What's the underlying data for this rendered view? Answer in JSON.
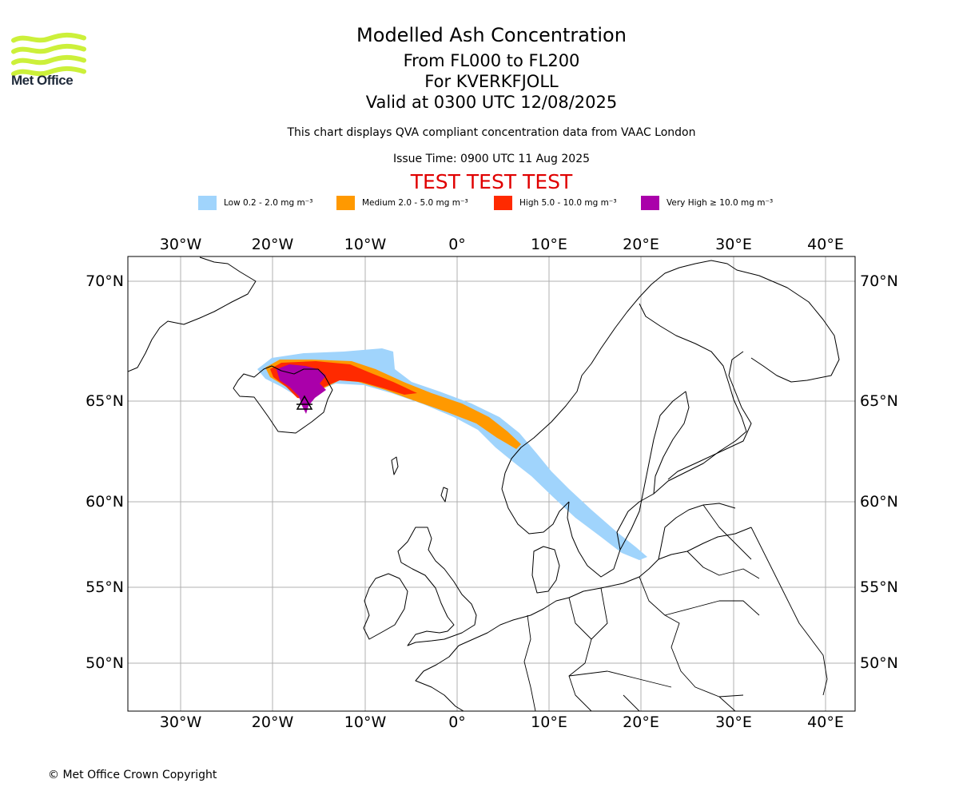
{
  "header": {
    "title": "Modelled Ash Concentration",
    "subtitle_levels": "From FL000 to FL200",
    "subtitle_volcano": "For KVERKFJOLL",
    "subtitle_valid": "Valid at 0300 UTC 12/08/2025",
    "info": "This chart displays QVA compliant concentration data from VAAC London",
    "issue_time": "Issue Time: 0900 UTC 11 Aug 2025",
    "test_banner": "TEST TEST TEST"
  },
  "logo": {
    "text": "Met Office",
    "icon": "met-office-waves-logo",
    "color": "#ccf03a"
  },
  "legend": [
    {
      "label": "Low 0.2 - 2.0 mg m⁻³",
      "color": "#a0d4fc"
    },
    {
      "label": "Medium 2.0 - 5.0 mg m⁻³",
      "color": "#ff9900"
    },
    {
      "label": "High 5.0 - 10.0 mg m⁻³",
      "color": "#ff2a00"
    },
    {
      "label": "Very High ≥ 10.0 mg m⁻³",
      "color": "#aa00aa"
    }
  ],
  "map": {
    "lon_ticks": [
      "30°W",
      "20°W",
      "10°W",
      "0°",
      "10°E",
      "20°E",
      "30°E",
      "40°E"
    ],
    "lat_ticks": [
      "70°N",
      "65°N",
      "60°N",
      "55°N",
      "50°N"
    ],
    "volcano_marker": "volcano-triangle-icon",
    "grid": true
  },
  "footer": {
    "copyright": "© Met Office Crown Copyright"
  }
}
